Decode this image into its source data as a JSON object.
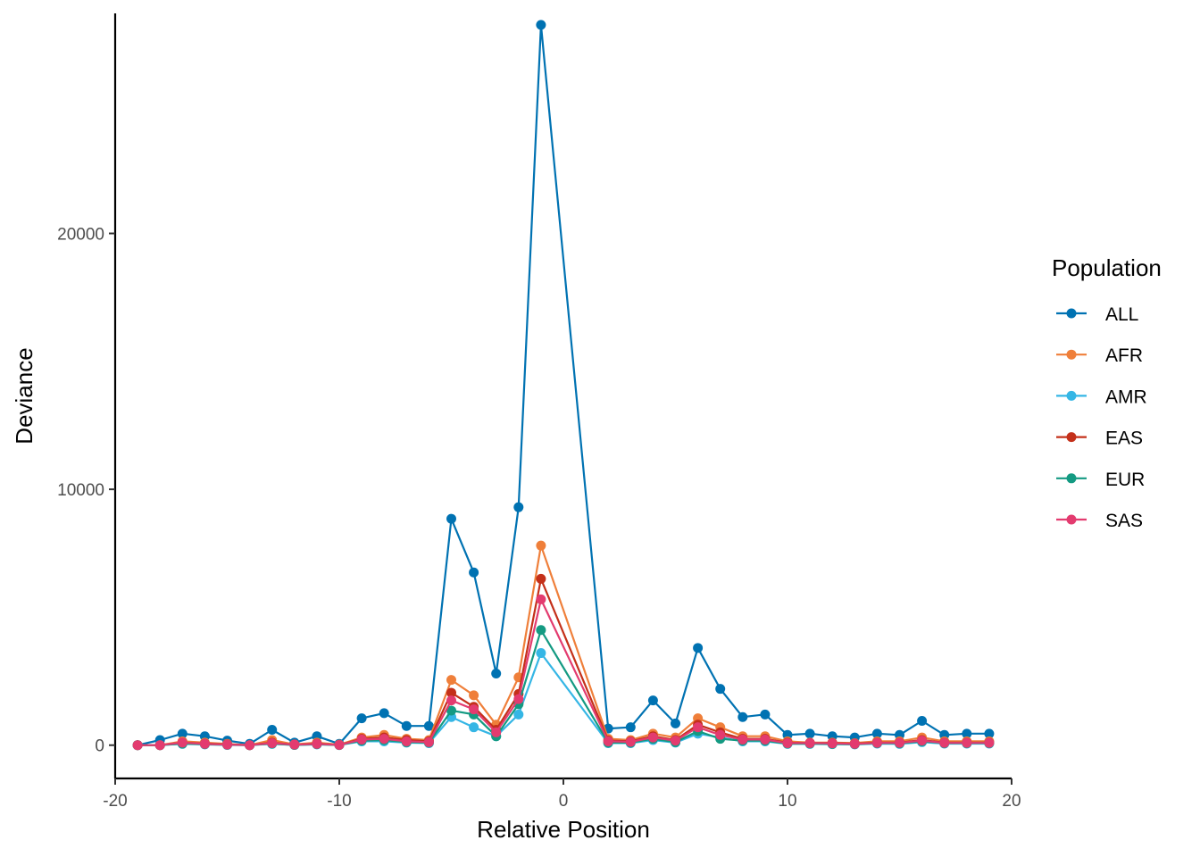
{
  "chart_data": {
    "type": "line",
    "xlabel": "Relative Position",
    "ylabel": "Deviance",
    "xlim": [
      -20,
      20
    ],
    "ylim": [
      -1300,
      28600
    ],
    "x_ticks": [
      -20,
      -10,
      0,
      10,
      20
    ],
    "x_tick_labels": [
      "-20",
      "-10",
      "0",
      "10",
      "20"
    ],
    "y_ticks": [
      0,
      10000,
      20000
    ],
    "y_tick_labels": [
      "0",
      "10000",
      "20000"
    ],
    "grid": false,
    "legend": {
      "title": "Population",
      "placement": "right"
    },
    "x": [
      -19,
      -18,
      -17,
      -16,
      -15,
      -14,
      -13,
      -12,
      -11,
      -10,
      -9,
      -8,
      -7,
      -6,
      -5,
      -4,
      -3,
      -2,
      -1,
      2,
      3,
      4,
      5,
      6,
      7,
      8,
      9,
      10,
      11,
      12,
      13,
      14,
      15,
      16,
      17,
      18,
      19
    ],
    "series": [
      {
        "name": "ALL",
        "color": "#0072B2",
        "values": [
          0,
          200,
          450,
          350,
          180,
          50,
          600,
          100,
          350,
          50,
          1050,
          1250,
          750,
          750,
          8850,
          6750,
          2800,
          9300,
          28150,
          650,
          700,
          1750,
          850,
          3800,
          2200,
          1100,
          1200,
          400,
          450,
          350,
          300,
          450,
          400,
          950,
          400,
          450,
          450
        ]
      },
      {
        "name": "AFR",
        "color": "#EF7F3A",
        "values": [
          0,
          0,
          150,
          100,
          50,
          0,
          200,
          30,
          100,
          20,
          300,
          400,
          250,
          200,
          2550,
          1950,
          800,
          2650,
          7800,
          250,
          200,
          450,
          300,
          1050,
          700,
          350,
          350,
          150,
          100,
          100,
          80,
          150,
          150,
          300,
          150,
          150,
          150
        ]
      },
      {
        "name": "AMR",
        "color": "#35B6E5",
        "values": [
          0,
          0,
          50,
          30,
          10,
          0,
          50,
          10,
          30,
          5,
          150,
          150,
          100,
          80,
          1100,
          700,
          350,
          1200,
          3600,
          80,
          80,
          200,
          100,
          450,
          300,
          150,
          150,
          50,
          50,
          40,
          30,
          60,
          50,
          120,
          60,
          60,
          60
        ]
      },
      {
        "name": "EAS",
        "color": "#C4301A",
        "values": [
          0,
          0,
          100,
          60,
          30,
          0,
          100,
          20,
          60,
          10,
          250,
          300,
          200,
          150,
          2050,
          1500,
          600,
          2000,
          6500,
          180,
          150,
          350,
          200,
          800,
          500,
          250,
          250,
          100,
          80,
          80,
          60,
          100,
          100,
          200,
          100,
          100,
          100
        ]
      },
      {
        "name": "EUR",
        "color": "#149A82",
        "values": [
          0,
          0,
          60,
          40,
          15,
          0,
          60,
          10,
          40,
          5,
          180,
          200,
          120,
          100,
          1350,
          1200,
          350,
          1600,
          4500,
          100,
          100,
          250,
          120,
          550,
          250,
          180,
          180,
          60,
          60,
          50,
          40,
          80,
          70,
          150,
          80,
          80,
          80
        ]
      },
      {
        "name": "SAS",
        "color": "#E33B6F",
        "values": [
          0,
          0,
          100,
          50,
          20,
          0,
          80,
          20,
          50,
          10,
          220,
          250,
          150,
          120,
          1750,
          1400,
          500,
          1800,
          5700,
          150,
          130,
          300,
          180,
          700,
          400,
          220,
          220,
          80,
          80,
          70,
          50,
          90,
          90,
          180,
          90,
          90,
          90
        ]
      }
    ]
  }
}
